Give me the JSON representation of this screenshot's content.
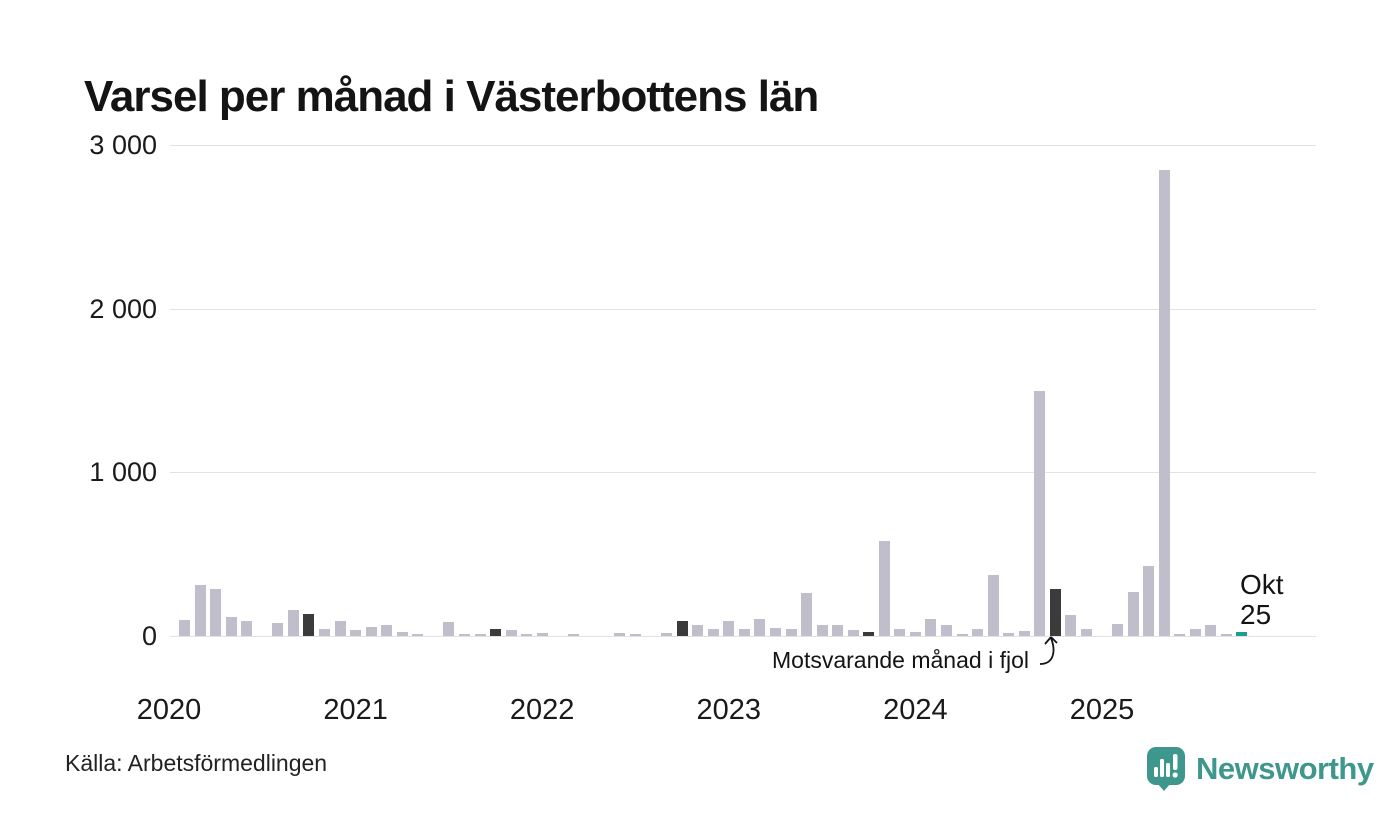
{
  "title": "Varsel per månad i Västerbottens län",
  "source": "Källa: Arbetsförmedlingen",
  "annotation": {
    "text": "Motsvarande månad i fjol",
    "target_month": "2024-10"
  },
  "current_label": {
    "line1": "Okt",
    "line2": "25"
  },
  "logo": {
    "text": "Newsworthy",
    "color": "#3e978d"
  },
  "colors": {
    "bar_normal": "#c1becb",
    "bar_previous_october": "#3b3b3b",
    "bar_current": "#1d9d8f",
    "gridline": "#e3e3e7",
    "text": "#141414"
  },
  "chart_data": {
    "type": "bar",
    "title": "Varsel per månad i Västerbottens län",
    "xlabel": "",
    "ylabel": "",
    "ylim": [
      0,
      3000
    ],
    "grid": "horizontal",
    "legend_position": "none",
    "y_ticks": [
      3000,
      2000,
      1000,
      0
    ],
    "y_tick_labels": [
      "3 000",
      "2 000",
      "1 000",
      "0"
    ],
    "x_tick_labels": [
      "2020",
      "2021",
      "2022",
      "2023",
      "2024",
      "2025"
    ],
    "months": [
      {
        "m": "2020-01",
        "v": 0
      },
      {
        "m": "2020-02",
        "v": 95
      },
      {
        "m": "2020-03",
        "v": 310
      },
      {
        "m": "2020-04",
        "v": 290
      },
      {
        "m": "2020-05",
        "v": 115
      },
      {
        "m": "2020-06",
        "v": 90
      },
      {
        "m": "2020-07",
        "v": 0
      },
      {
        "m": "2020-08",
        "v": 80
      },
      {
        "m": "2020-09",
        "v": 160
      },
      {
        "m": "2020-10",
        "v": 135,
        "r": "prev"
      },
      {
        "m": "2020-11",
        "v": 45
      },
      {
        "m": "2020-12",
        "v": 90
      },
      {
        "m": "2021-01",
        "v": 35
      },
      {
        "m": "2021-02",
        "v": 55
      },
      {
        "m": "2021-03",
        "v": 65
      },
      {
        "m": "2021-04",
        "v": 25
      },
      {
        "m": "2021-05",
        "v": 15
      },
      {
        "m": "2021-06",
        "v": 0
      },
      {
        "m": "2021-07",
        "v": 85
      },
      {
        "m": "2021-08",
        "v": 10
      },
      {
        "m": "2021-09",
        "v": 10
      },
      {
        "m": "2021-10",
        "v": 45,
        "r": "prev"
      },
      {
        "m": "2021-11",
        "v": 35
      },
      {
        "m": "2021-12",
        "v": 15
      },
      {
        "m": "2022-01",
        "v": 20
      },
      {
        "m": "2022-02",
        "v": 0
      },
      {
        "m": "2022-03",
        "v": 15
      },
      {
        "m": "2022-04",
        "v": 0
      },
      {
        "m": "2022-05",
        "v": 0
      },
      {
        "m": "2022-06",
        "v": 20
      },
      {
        "m": "2022-07",
        "v": 10
      },
      {
        "m": "2022-08",
        "v": 0
      },
      {
        "m": "2022-09",
        "v": 20
      },
      {
        "m": "2022-10",
        "v": 90,
        "r": "prev"
      },
      {
        "m": "2022-11",
        "v": 70
      },
      {
        "m": "2022-12",
        "v": 45
      },
      {
        "m": "2023-01",
        "v": 90
      },
      {
        "m": "2023-02",
        "v": 40
      },
      {
        "m": "2023-03",
        "v": 105
      },
      {
        "m": "2023-04",
        "v": 50
      },
      {
        "m": "2023-05",
        "v": 45
      },
      {
        "m": "2023-06",
        "v": 265
      },
      {
        "m": "2023-07",
        "v": 65
      },
      {
        "m": "2023-08",
        "v": 65
      },
      {
        "m": "2023-09",
        "v": 35
      },
      {
        "m": "2023-10",
        "v": 25,
        "r": "prev"
      },
      {
        "m": "2023-11",
        "v": 580
      },
      {
        "m": "2023-12",
        "v": 40
      },
      {
        "m": "2024-01",
        "v": 25
      },
      {
        "m": "2024-02",
        "v": 105
      },
      {
        "m": "2024-03",
        "v": 65
      },
      {
        "m": "2024-04",
        "v": 10
      },
      {
        "m": "2024-05",
        "v": 45
      },
      {
        "m": "2024-06",
        "v": 370
      },
      {
        "m": "2024-07",
        "v": 20
      },
      {
        "m": "2024-08",
        "v": 30
      },
      {
        "m": "2024-09",
        "v": 1500
      },
      {
        "m": "2024-10",
        "v": 290,
        "r": "prev"
      },
      {
        "m": "2024-11",
        "v": 130
      },
      {
        "m": "2024-12",
        "v": 45
      },
      {
        "m": "2025-01",
        "v": 0
      },
      {
        "m": "2025-02",
        "v": 75
      },
      {
        "m": "2025-03",
        "v": 270
      },
      {
        "m": "2025-04",
        "v": 430
      },
      {
        "m": "2025-05",
        "v": 2850
      },
      {
        "m": "2025-06",
        "v": 15
      },
      {
        "m": "2025-07",
        "v": 40
      },
      {
        "m": "2025-08",
        "v": 70
      },
      {
        "m": "2025-09",
        "v": 10
      },
      {
        "m": "2025-10",
        "v": 25,
        "r": "current"
      }
    ]
  }
}
